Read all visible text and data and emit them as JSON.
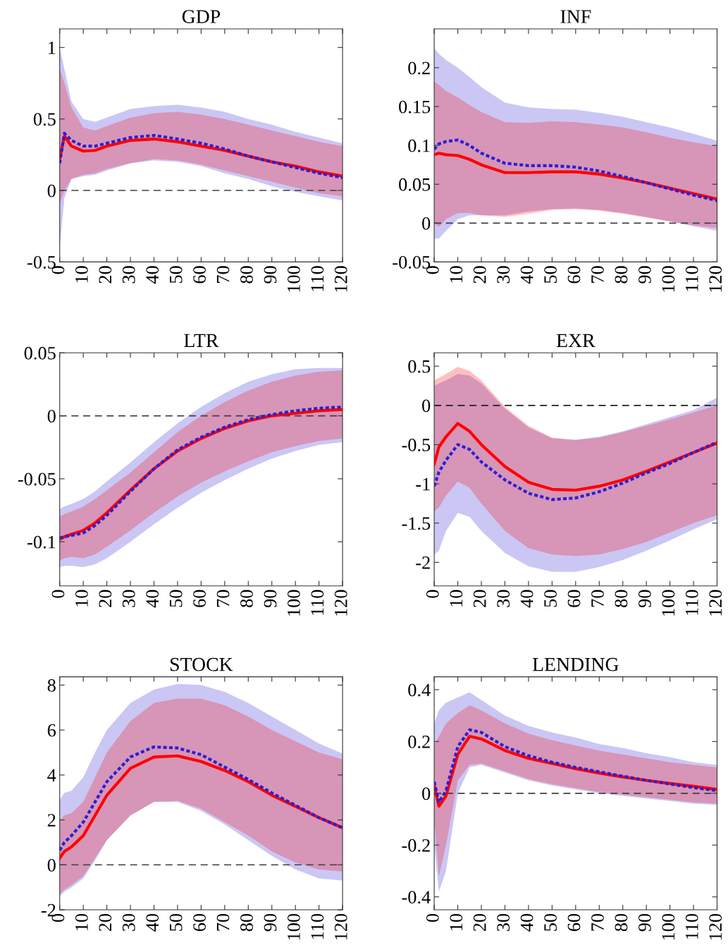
{
  "chart_data": [
    {
      "type": "line",
      "title": "GDP",
      "x": [
        0,
        2,
        5,
        10,
        15,
        20,
        30,
        40,
        50,
        60,
        70,
        80,
        90,
        100,
        110,
        120
      ],
      "xlim": [
        0,
        120
      ],
      "xticks": [
        0,
        10,
        20,
        30,
        40,
        50,
        60,
        70,
        80,
        90,
        100,
        110,
        120
      ],
      "ylim": [
        -0.5,
        1.13
      ],
      "yticks": [
        -0.5,
        0,
        0.5,
        1
      ],
      "ref_lines": [
        {
          "axis": "y",
          "value": 0,
          "color": "#404040",
          "line_style": "dashed"
        }
      ],
      "series": [
        {
          "color": "#2b1fd6",
          "line_style": "dotted",
          "values": [
            0.19,
            0.4,
            0.35,
            0.31,
            0.31,
            0.33,
            0.37,
            0.385,
            0.36,
            0.33,
            0.29,
            0.24,
            0.2,
            0.16,
            0.12,
            0.09
          ],
          "lower": [
            -0.4,
            -0.05,
            0.08,
            0.1,
            0.11,
            0.14,
            0.19,
            0.21,
            0.2,
            0.17,
            0.12,
            0.08,
            0.03,
            -0.01,
            -0.04,
            -0.07
          ],
          "upper": [
            1.0,
            0.85,
            0.62,
            0.5,
            0.48,
            0.51,
            0.57,
            0.59,
            0.6,
            0.58,
            0.55,
            0.5,
            0.46,
            0.41,
            0.37,
            0.33
          ]
        },
        {
          "color": "#ff0000",
          "line_style": "solid",
          "values": [
            0.22,
            0.38,
            0.31,
            0.275,
            0.28,
            0.31,
            0.35,
            0.36,
            0.34,
            0.31,
            0.28,
            0.24,
            0.2,
            0.17,
            0.13,
            0.1
          ],
          "lower": [
            -0.1,
            0.0,
            0.08,
            0.11,
            0.12,
            0.15,
            0.19,
            0.22,
            0.21,
            0.18,
            0.14,
            0.1,
            0.06,
            0.02,
            -0.02,
            -0.04
          ],
          "upper": [
            0.85,
            0.75,
            0.58,
            0.44,
            0.42,
            0.45,
            0.51,
            0.54,
            0.55,
            0.53,
            0.5,
            0.46,
            0.42,
            0.38,
            0.34,
            0.31
          ]
        }
      ]
    },
    {
      "type": "line",
      "title": "INF",
      "x": [
        0,
        2,
        5,
        10,
        15,
        20,
        30,
        40,
        50,
        60,
        70,
        80,
        90,
        100,
        110,
        120
      ],
      "xlim": [
        0,
        120
      ],
      "xticks": [
        0,
        10,
        20,
        30,
        40,
        50,
        60,
        70,
        80,
        90,
        100,
        110,
        120
      ],
      "ylim": [
        -0.05,
        0.25
      ],
      "yticks": [
        -0.05,
        0,
        0.05,
        0.1,
        0.15,
        0.2
      ],
      "ref_lines": [
        {
          "axis": "y",
          "value": 0,
          "color": "#404040",
          "line_style": "dashed"
        }
      ],
      "series": [
        {
          "color": "#2b1fd6",
          "line_style": "dotted",
          "values": [
            0.095,
            0.102,
            0.105,
            0.107,
            0.1,
            0.09,
            0.077,
            0.074,
            0.074,
            0.072,
            0.067,
            0.06,
            0.052,
            0.044,
            0.036,
            0.029
          ],
          "lower": [
            -0.02,
            -0.02,
            -0.01,
            0.005,
            0.01,
            0.01,
            0.01,
            0.015,
            0.018,
            0.019,
            0.017,
            0.013,
            0.008,
            0.002,
            -0.004,
            -0.01
          ],
          "upper": [
            0.225,
            0.218,
            0.21,
            0.2,
            0.188,
            0.175,
            0.155,
            0.149,
            0.147,
            0.146,
            0.142,
            0.137,
            0.13,
            0.123,
            0.115,
            0.106
          ]
        },
        {
          "color": "#ff0000",
          "line_style": "solid",
          "values": [
            0.088,
            0.09,
            0.088,
            0.087,
            0.082,
            0.075,
            0.065,
            0.065,
            0.066,
            0.066,
            0.063,
            0.058,
            0.052,
            0.045,
            0.038,
            0.031
          ],
          "lower": [
            0.0,
            -0.005,
            0.005,
            0.013,
            0.013,
            0.01,
            0.008,
            0.012,
            0.017,
            0.018,
            0.016,
            0.012,
            0.007,
            0.002,
            -0.003,
            -0.006
          ],
          "upper": [
            0.182,
            0.178,
            0.17,
            0.162,
            0.152,
            0.143,
            0.13,
            0.129,
            0.131,
            0.13,
            0.127,
            0.123,
            0.117,
            0.11,
            0.104,
            0.099
          ]
        }
      ]
    },
    {
      "type": "line",
      "title": "LTR",
      "x": [
        0,
        2,
        5,
        10,
        15,
        20,
        30,
        40,
        50,
        60,
        70,
        80,
        90,
        100,
        110,
        120
      ],
      "xlim": [
        0,
        120
      ],
      "xticks": [
        0,
        10,
        20,
        30,
        40,
        50,
        60,
        70,
        80,
        90,
        100,
        110,
        120
      ],
      "ylim": [
        -0.135,
        0.05
      ],
      "yticks": [
        -0.1,
        -0.05,
        0,
        0.05
      ],
      "ref_lines": [
        {
          "axis": "y",
          "value": 0,
          "color": "#404040",
          "line_style": "dashed"
        }
      ],
      "series": [
        {
          "color": "#2b1fd6",
          "line_style": "dotted",
          "values": [
            -0.097,
            -0.096,
            -0.095,
            -0.093,
            -0.087,
            -0.079,
            -0.06,
            -0.042,
            -0.027,
            -0.017,
            -0.009,
            -0.003,
            0.001,
            0.004,
            0.006,
            0.007
          ],
          "lower": [
            -0.12,
            -0.119,
            -0.119,
            -0.12,
            -0.118,
            -0.113,
            -0.1,
            -0.086,
            -0.073,
            -0.061,
            -0.051,
            -0.042,
            -0.034,
            -0.028,
            -0.023,
            -0.021
          ],
          "upper": [
            -0.074,
            -0.072,
            -0.07,
            -0.066,
            -0.06,
            -0.052,
            -0.037,
            -0.021,
            -0.006,
            0.007,
            0.018,
            0.027,
            0.033,
            0.037,
            0.038,
            0.038
          ]
        },
        {
          "color": "#ff0000",
          "line_style": "solid",
          "values": [
            -0.098,
            -0.096,
            -0.094,
            -0.091,
            -0.085,
            -0.077,
            -0.059,
            -0.042,
            -0.028,
            -0.018,
            -0.01,
            -0.004,
            0.0,
            0.002,
            0.004,
            0.005
          ],
          "lower": [
            -0.115,
            -0.113,
            -0.112,
            -0.113,
            -0.11,
            -0.104,
            -0.091,
            -0.077,
            -0.064,
            -0.053,
            -0.044,
            -0.036,
            -0.029,
            -0.024,
            -0.02,
            -0.018
          ],
          "upper": [
            -0.08,
            -0.078,
            -0.076,
            -0.072,
            -0.066,
            -0.059,
            -0.045,
            -0.029,
            -0.013,
            0.0,
            0.011,
            0.02,
            0.027,
            0.032,
            0.035,
            0.036
          ]
        }
      ]
    },
    {
      "type": "line",
      "title": "EXR",
      "x": [
        0,
        2,
        5,
        10,
        15,
        20,
        30,
        40,
        50,
        60,
        70,
        80,
        90,
        100,
        110,
        120
      ],
      "xlim": [
        0,
        120
      ],
      "xticks": [
        0,
        10,
        20,
        30,
        40,
        50,
        60,
        70,
        80,
        90,
        100,
        110,
        120
      ],
      "ylim": [
        -2.3,
        0.67
      ],
      "yticks": [
        -2,
        -1.5,
        -1,
        -0.5,
        0,
        0.5
      ],
      "ref_lines": [
        {
          "axis": "y",
          "value": 0,
          "color": "#202020",
          "line_style": "dashed"
        }
      ],
      "series": [
        {
          "color": "#2b1fd6",
          "line_style": "dotted",
          "values": [
            -1.03,
            -0.85,
            -0.7,
            -0.5,
            -0.56,
            -0.72,
            -0.95,
            -1.12,
            -1.2,
            -1.18,
            -1.1,
            -0.99,
            -0.86,
            -0.74,
            -0.6,
            -0.47
          ],
          "lower": [
            -1.9,
            -1.85,
            -1.6,
            -1.37,
            -1.42,
            -1.6,
            -1.88,
            -2.05,
            -2.12,
            -2.12,
            -2.06,
            -1.97,
            -1.85,
            -1.72,
            -1.58,
            -1.45
          ],
          "upper": [
            0.25,
            0.28,
            0.32,
            0.4,
            0.38,
            0.28,
            -0.04,
            -0.28,
            -0.42,
            -0.44,
            -0.4,
            -0.33,
            -0.24,
            -0.15,
            -0.06,
            0.1
          ]
        },
        {
          "color": "#ff0000",
          "line_style": "solid",
          "values": [
            -0.75,
            -0.53,
            -0.4,
            -0.23,
            -0.33,
            -0.5,
            -0.78,
            -0.98,
            -1.07,
            -1.08,
            -1.03,
            -0.95,
            -0.84,
            -0.72,
            -0.6,
            -0.48
          ],
          "lower": [
            -1.35,
            -1.3,
            -1.15,
            -0.97,
            -1.05,
            -1.25,
            -1.6,
            -1.82,
            -1.9,
            -1.92,
            -1.9,
            -1.83,
            -1.74,
            -1.62,
            -1.5,
            -1.4
          ],
          "upper": [
            0.32,
            0.35,
            0.4,
            0.49,
            0.44,
            0.32,
            -0.02,
            -0.26,
            -0.41,
            -0.44,
            -0.41,
            -0.34,
            -0.26,
            -0.18,
            -0.09,
            0.0
          ]
        }
      ]
    },
    {
      "type": "line",
      "title": "STOCK",
      "x": [
        0,
        2,
        5,
        10,
        15,
        20,
        30,
        40,
        50,
        60,
        70,
        80,
        90,
        100,
        110,
        120
      ],
      "xlim": [
        0,
        120
      ],
      "xticks": [
        0,
        10,
        20,
        30,
        40,
        50,
        60,
        70,
        80,
        90,
        100,
        110,
        120
      ],
      "ylim": [
        -2,
        8.37
      ],
      "yticks": [
        -2,
        0,
        2,
        4,
        6,
        8
      ],
      "ref_lines": [
        {
          "axis": "y",
          "value": 0,
          "color": "#404040",
          "line_style": "dashed"
        }
      ],
      "series": [
        {
          "color": "#2b1fd6",
          "line_style": "dotted",
          "values": [
            0.65,
            1.0,
            1.3,
            1.9,
            2.8,
            3.7,
            4.8,
            5.25,
            5.2,
            4.9,
            4.35,
            3.8,
            3.2,
            2.65,
            2.1,
            1.65
          ],
          "lower": [
            -1.4,
            -1.2,
            -1.0,
            -0.6,
            0.2,
            1.1,
            2.2,
            2.8,
            2.8,
            2.4,
            1.8,
            1.1,
            0.4,
            -0.2,
            -0.6,
            -0.7
          ],
          "upper": [
            2.9,
            3.2,
            3.3,
            3.9,
            5.0,
            6.0,
            7.2,
            7.8,
            8.05,
            8.0,
            7.7,
            7.2,
            6.6,
            6.0,
            5.4,
            4.95
          ]
        },
        {
          "color": "#ff0000",
          "line_style": "solid",
          "values": [
            0.3,
            0.6,
            0.8,
            1.3,
            2.2,
            3.1,
            4.3,
            4.8,
            4.85,
            4.6,
            4.2,
            3.7,
            3.1,
            2.6,
            2.1,
            1.65
          ],
          "lower": [
            -1.3,
            -1.1,
            -0.9,
            -0.5,
            0.3,
            1.1,
            2.2,
            2.8,
            2.85,
            2.5,
            1.9,
            1.3,
            0.6,
            0.1,
            -0.2,
            -0.3
          ],
          "upper": [
            2.0,
            2.2,
            2.3,
            2.8,
            3.9,
            5.0,
            6.4,
            7.2,
            7.4,
            7.4,
            7.1,
            6.6,
            6.0,
            5.5,
            5.0,
            4.7
          ]
        }
      ]
    },
    {
      "type": "line",
      "title": "LENDING",
      "x": [
        0,
        2,
        5,
        10,
        15,
        20,
        30,
        40,
        50,
        60,
        70,
        80,
        90,
        100,
        110,
        120
      ],
      "xlim": [
        0,
        120
      ],
      "xticks": [
        0,
        10,
        20,
        30,
        40,
        50,
        60,
        70,
        80,
        90,
        100,
        110,
        120
      ],
      "ylim": [
        -0.45,
        0.45
      ],
      "yticks": [
        -0.4,
        -0.2,
        0,
        0.2,
        0.4
      ],
      "ref_lines": [
        {
          "axis": "y",
          "value": 0,
          "color": "#404040",
          "line_style": "dashed"
        }
      ],
      "series": [
        {
          "color": "#2b1fd6",
          "line_style": "dotted",
          "values": [
            0.045,
            -0.035,
            0.01,
            0.18,
            0.245,
            0.235,
            0.18,
            0.145,
            0.12,
            0.1,
            0.083,
            0.066,
            0.05,
            0.036,
            0.022,
            0.01
          ],
          "lower": [
            -0.2,
            -0.38,
            -0.3,
            0.0,
            0.1,
            0.11,
            0.08,
            0.05,
            0.03,
            0.015,
            0.0,
            -0.01,
            -0.02,
            -0.03,
            -0.04,
            -0.045
          ],
          "upper": [
            0.27,
            0.32,
            0.35,
            0.37,
            0.39,
            0.36,
            0.3,
            0.26,
            0.235,
            0.215,
            0.19,
            0.175,
            0.155,
            0.14,
            0.12,
            0.11
          ]
        },
        {
          "color": "#ff0000",
          "line_style": "solid",
          "values": [
            0.03,
            -0.05,
            -0.01,
            0.15,
            0.22,
            0.21,
            0.165,
            0.135,
            0.115,
            0.095,
            0.078,
            0.063,
            0.05,
            0.038,
            0.027,
            0.015
          ],
          "lower": [
            -0.1,
            -0.32,
            -0.2,
            0.05,
            0.11,
            0.115,
            0.085,
            0.055,
            0.035,
            0.02,
            0.005,
            -0.005,
            -0.015,
            -0.025,
            -0.035,
            -0.04
          ],
          "upper": [
            0.19,
            0.22,
            0.27,
            0.31,
            0.34,
            0.32,
            0.27,
            0.23,
            0.205,
            0.185,
            0.165,
            0.15,
            0.135,
            0.12,
            0.11,
            0.1
          ]
        }
      ]
    }
  ]
}
